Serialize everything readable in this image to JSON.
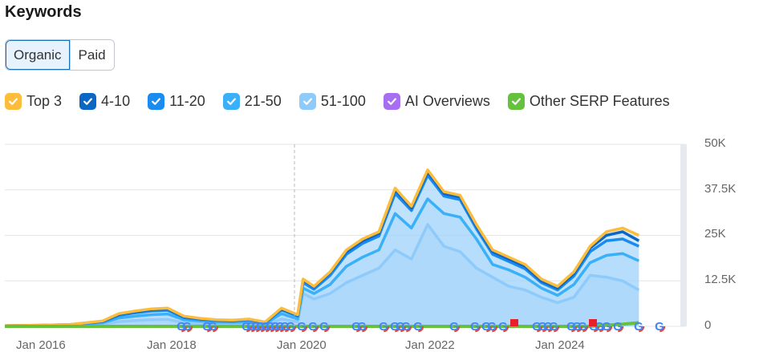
{
  "header": {
    "title": "Keywords"
  },
  "tabs": [
    {
      "label": "Organic",
      "active": true
    },
    {
      "label": "Paid",
      "active": false
    }
  ],
  "legend": [
    {
      "label": "Top 3",
      "color": "#fdbd3c"
    },
    {
      "label": "4-10",
      "color": "#0c67c4"
    },
    {
      "label": "11-20",
      "color": "#1a8cf0"
    },
    {
      "label": "21-50",
      "color": "#39b0f8"
    },
    {
      "label": "51-100",
      "color": "#8ecbfb"
    },
    {
      "label": "AI Overviews",
      "color": "#a86ef0"
    },
    {
      "label": "Other SERP Features",
      "color": "#66c23d"
    }
  ],
  "axes": {
    "y_ticks": [
      "50K",
      "37.5K",
      "25K",
      "12.5K",
      "0"
    ],
    "x_ticks": [
      "Jan 2016",
      "Jan 2018",
      "Jan 2020",
      "Jan 2022",
      "Jan 2024"
    ]
  },
  "chart_data": {
    "type": "area",
    "title": "Keywords",
    "xlabel": "",
    "ylabel": "",
    "ylim": [
      0,
      50000
    ],
    "grid": true,
    "legend_position": "top",
    "x_ticks": [
      "Jan 2016",
      "Jan 2018",
      "Jan 2020",
      "Jan 2022",
      "Jan 2024"
    ],
    "y_ticks": [
      "0",
      "12.5K",
      "25K",
      "37.5K",
      "50K"
    ],
    "x": [
      "2015-07",
      "2016-01",
      "2016-07",
      "2017-01",
      "2017-04",
      "2017-07",
      "2017-10",
      "2018-01",
      "2018-04",
      "2018-07",
      "2018-10",
      "2019-01",
      "2019-04",
      "2019-07",
      "2019-10",
      "2020-01",
      "2020-02",
      "2020-04",
      "2020-07",
      "2020-10",
      "2021-01",
      "2021-04",
      "2021-07",
      "2021-10",
      "2022-01",
      "2022-04",
      "2022-07",
      "2022-10",
      "2023-01",
      "2023-04",
      "2023-07",
      "2023-10",
      "2024-01",
      "2024-04",
      "2024-07",
      "2024-10",
      "2025-01",
      "2025-04"
    ],
    "series": [
      {
        "name": "Top 3 (total)",
        "values": [
          200,
          300,
          500,
          1500,
          3500,
          4200,
          4800,
          5000,
          2800,
          2200,
          1800,
          1700,
          2000,
          1200,
          5000,
          3200,
          13000,
          11000,
          15000,
          21000,
          24000,
          26000,
          38000,
          33000,
          43000,
          37000,
          36000,
          28000,
          21000,
          19000,
          17000,
          13000,
          11000,
          15000,
          22000,
          26000,
          27000,
          25000
        ]
      },
      {
        "name": "4-10",
        "values": [
          200,
          300,
          500,
          1400,
          3300,
          4000,
          4600,
          4800,
          2600,
          2100,
          1700,
          1600,
          1900,
          1100,
          4800,
          3000,
          12800,
          10800,
          14800,
          20500,
          23500,
          25500,
          37500,
          32500,
          42500,
          36500,
          35500,
          27500,
          20500,
          18500,
          16500,
          12500,
          10500,
          14500,
          21500,
          25000,
          26000,
          23500
        ]
      },
      {
        "name": "11-20",
        "values": [
          150,
          250,
          450,
          1300,
          3000,
          3700,
          4200,
          4400,
          2400,
          1900,
          1600,
          1500,
          1800,
          1000,
          4500,
          2800,
          12000,
          10200,
          14000,
          19800,
          22800,
          24800,
          36500,
          31800,
          41500,
          35800,
          34800,
          26800,
          19800,
          17800,
          15800,
          12000,
          10000,
          13800,
          20500,
          23500,
          24000,
          22000
        ]
      },
      {
        "name": "21-50",
        "values": [
          100,
          200,
          350,
          1000,
          2300,
          2800,
          3200,
          3400,
          1800,
          1500,
          1200,
          1100,
          1300,
          700,
          3500,
          2000,
          10500,
          9000,
          11500,
          16500,
          19000,
          21000,
          31000,
          27000,
          35000,
          31000,
          30000,
          24000,
          17000,
          15500,
          13500,
          10500,
          8500,
          11500,
          17500,
          19500,
          20000,
          18000
        ]
      },
      {
        "name": "51-100",
        "values": [
          50,
          100,
          200,
          600,
          1300,
          1600,
          1800,
          1900,
          1000,
          800,
          700,
          600,
          800,
          400,
          2000,
          1200,
          9000,
          7500,
          9000,
          12000,
          14000,
          16000,
          21000,
          18500,
          28000,
          22000,
          20500,
          16000,
          13500,
          11000,
          10000,
          8000,
          6500,
          8000,
          14000,
          13500,
          12500,
          10000
        ]
      },
      {
        "name": "AI Overviews",
        "values": [
          0,
          0,
          0,
          0,
          0,
          0,
          0,
          0,
          0,
          0,
          0,
          0,
          0,
          0,
          0,
          0,
          0,
          0,
          0,
          0,
          0,
          0,
          0,
          0,
          0,
          0,
          0,
          0,
          0,
          0,
          0,
          0,
          0,
          0,
          0,
          0,
          0,
          0
        ]
      },
      {
        "name": "Other SERP Features",
        "values": [
          0,
          0,
          0,
          0,
          0,
          0,
          0,
          0,
          0,
          0,
          0,
          0,
          0,
          0,
          0,
          0,
          0,
          0,
          0,
          0,
          0,
          0,
          0,
          0,
          0,
          0,
          0,
          0,
          0,
          0,
          0,
          0,
          0,
          0,
          0,
          300,
          600,
          1000
        ]
      }
    ],
    "annotations": [
      {
        "type": "vertical-dashed-line",
        "x": "2019-11"
      },
      {
        "type": "google-update-markers",
        "note": "Many Google algorithm update 'G' markers along baseline from 2018 to 2025"
      },
      {
        "type": "flag-markers",
        "color": "#e8202a",
        "note": "Red flag markers near 2023 and mid-2024"
      }
    ]
  }
}
